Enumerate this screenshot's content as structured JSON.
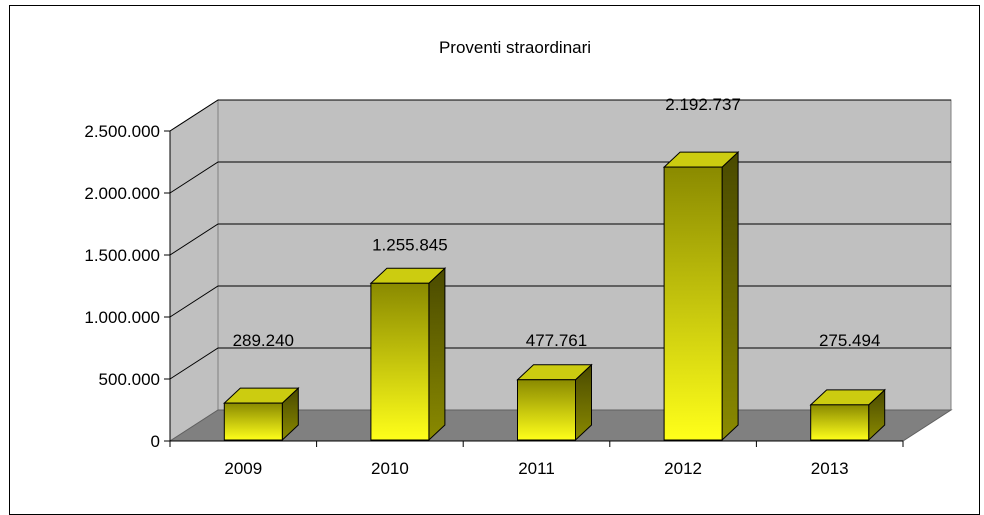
{
  "chart_data": {
    "type": "bar",
    "title": "Proventi straordinari",
    "xlabel": "",
    "ylabel": "",
    "categories": [
      "2009",
      "2010",
      "2011",
      "2012",
      "2013"
    ],
    "values": [
      289240,
      1255845,
      477761,
      2192737,
      275494
    ],
    "data_labels": [
      "289.240",
      "1.255.845",
      "477.761",
      "2.192.737",
      "275.494"
    ],
    "ylim": [
      0,
      2500000
    ],
    "yticks": [
      {
        "value": 0,
        "label": "0"
      },
      {
        "value": 500000,
        "label": "500.000"
      },
      {
        "value": 1000000,
        "label": "1.000.000"
      },
      {
        "value": 1500000,
        "label": "1.500.000"
      },
      {
        "value": 2000000,
        "label": "2.000.000"
      },
      {
        "value": 2500000,
        "label": "2.500.000"
      }
    ],
    "grid": true,
    "legend": "none",
    "style": "3d",
    "colors": {
      "bar_front_top": "#8a8a00",
      "bar_front_bottom": "#ffff1a",
      "bar_top": "#cccc10",
      "bar_side": "#6b6b00",
      "wall": "#c0c0c0",
      "floor": "#808080",
      "grid": "#000000"
    }
  }
}
